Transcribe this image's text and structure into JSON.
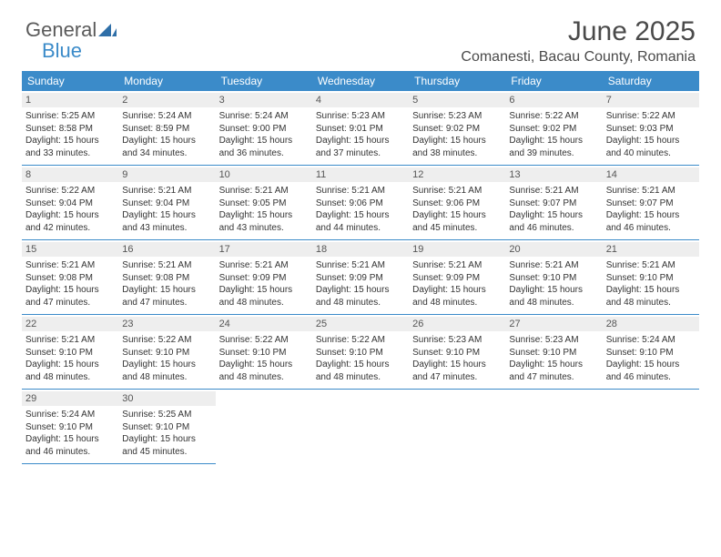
{
  "logo": {
    "word1": "General",
    "word2": "Blue"
  },
  "title": "June 2025",
  "location": "Comanesti, Bacau County, Romania",
  "colors": {
    "header_bg": "#3b8bc9",
    "daynum_bg": "#eeeeee",
    "border": "#3b8bc9"
  },
  "dayNames": [
    "Sunday",
    "Monday",
    "Tuesday",
    "Wednesday",
    "Thursday",
    "Friday",
    "Saturday"
  ],
  "weeks": [
    [
      {
        "num": "1",
        "sunrise": "Sunrise: 5:25 AM",
        "sunset": "Sunset: 8:58 PM",
        "daylight": "Daylight: 15 hours and 33 minutes."
      },
      {
        "num": "2",
        "sunrise": "Sunrise: 5:24 AM",
        "sunset": "Sunset: 8:59 PM",
        "daylight": "Daylight: 15 hours and 34 minutes."
      },
      {
        "num": "3",
        "sunrise": "Sunrise: 5:24 AM",
        "sunset": "Sunset: 9:00 PM",
        "daylight": "Daylight: 15 hours and 36 minutes."
      },
      {
        "num": "4",
        "sunrise": "Sunrise: 5:23 AM",
        "sunset": "Sunset: 9:01 PM",
        "daylight": "Daylight: 15 hours and 37 minutes."
      },
      {
        "num": "5",
        "sunrise": "Sunrise: 5:23 AM",
        "sunset": "Sunset: 9:02 PM",
        "daylight": "Daylight: 15 hours and 38 minutes."
      },
      {
        "num": "6",
        "sunrise": "Sunrise: 5:22 AM",
        "sunset": "Sunset: 9:02 PM",
        "daylight": "Daylight: 15 hours and 39 minutes."
      },
      {
        "num": "7",
        "sunrise": "Sunrise: 5:22 AM",
        "sunset": "Sunset: 9:03 PM",
        "daylight": "Daylight: 15 hours and 40 minutes."
      }
    ],
    [
      {
        "num": "8",
        "sunrise": "Sunrise: 5:22 AM",
        "sunset": "Sunset: 9:04 PM",
        "daylight": "Daylight: 15 hours and 42 minutes."
      },
      {
        "num": "9",
        "sunrise": "Sunrise: 5:21 AM",
        "sunset": "Sunset: 9:04 PM",
        "daylight": "Daylight: 15 hours and 43 minutes."
      },
      {
        "num": "10",
        "sunrise": "Sunrise: 5:21 AM",
        "sunset": "Sunset: 9:05 PM",
        "daylight": "Daylight: 15 hours and 43 minutes."
      },
      {
        "num": "11",
        "sunrise": "Sunrise: 5:21 AM",
        "sunset": "Sunset: 9:06 PM",
        "daylight": "Daylight: 15 hours and 44 minutes."
      },
      {
        "num": "12",
        "sunrise": "Sunrise: 5:21 AM",
        "sunset": "Sunset: 9:06 PM",
        "daylight": "Daylight: 15 hours and 45 minutes."
      },
      {
        "num": "13",
        "sunrise": "Sunrise: 5:21 AM",
        "sunset": "Sunset: 9:07 PM",
        "daylight": "Daylight: 15 hours and 46 minutes."
      },
      {
        "num": "14",
        "sunrise": "Sunrise: 5:21 AM",
        "sunset": "Sunset: 9:07 PM",
        "daylight": "Daylight: 15 hours and 46 minutes."
      }
    ],
    [
      {
        "num": "15",
        "sunrise": "Sunrise: 5:21 AM",
        "sunset": "Sunset: 9:08 PM",
        "daylight": "Daylight: 15 hours and 47 minutes."
      },
      {
        "num": "16",
        "sunrise": "Sunrise: 5:21 AM",
        "sunset": "Sunset: 9:08 PM",
        "daylight": "Daylight: 15 hours and 47 minutes."
      },
      {
        "num": "17",
        "sunrise": "Sunrise: 5:21 AM",
        "sunset": "Sunset: 9:09 PM",
        "daylight": "Daylight: 15 hours and 48 minutes."
      },
      {
        "num": "18",
        "sunrise": "Sunrise: 5:21 AM",
        "sunset": "Sunset: 9:09 PM",
        "daylight": "Daylight: 15 hours and 48 minutes."
      },
      {
        "num": "19",
        "sunrise": "Sunrise: 5:21 AM",
        "sunset": "Sunset: 9:09 PM",
        "daylight": "Daylight: 15 hours and 48 minutes."
      },
      {
        "num": "20",
        "sunrise": "Sunrise: 5:21 AM",
        "sunset": "Sunset: 9:10 PM",
        "daylight": "Daylight: 15 hours and 48 minutes."
      },
      {
        "num": "21",
        "sunrise": "Sunrise: 5:21 AM",
        "sunset": "Sunset: 9:10 PM",
        "daylight": "Daylight: 15 hours and 48 minutes."
      }
    ],
    [
      {
        "num": "22",
        "sunrise": "Sunrise: 5:21 AM",
        "sunset": "Sunset: 9:10 PM",
        "daylight": "Daylight: 15 hours and 48 minutes."
      },
      {
        "num": "23",
        "sunrise": "Sunrise: 5:22 AM",
        "sunset": "Sunset: 9:10 PM",
        "daylight": "Daylight: 15 hours and 48 minutes."
      },
      {
        "num": "24",
        "sunrise": "Sunrise: 5:22 AM",
        "sunset": "Sunset: 9:10 PM",
        "daylight": "Daylight: 15 hours and 48 minutes."
      },
      {
        "num": "25",
        "sunrise": "Sunrise: 5:22 AM",
        "sunset": "Sunset: 9:10 PM",
        "daylight": "Daylight: 15 hours and 48 minutes."
      },
      {
        "num": "26",
        "sunrise": "Sunrise: 5:23 AM",
        "sunset": "Sunset: 9:10 PM",
        "daylight": "Daylight: 15 hours and 47 minutes."
      },
      {
        "num": "27",
        "sunrise": "Sunrise: 5:23 AM",
        "sunset": "Sunset: 9:10 PM",
        "daylight": "Daylight: 15 hours and 47 minutes."
      },
      {
        "num": "28",
        "sunrise": "Sunrise: 5:24 AM",
        "sunset": "Sunset: 9:10 PM",
        "daylight": "Daylight: 15 hours and 46 minutes."
      }
    ],
    [
      {
        "num": "29",
        "sunrise": "Sunrise: 5:24 AM",
        "sunset": "Sunset: 9:10 PM",
        "daylight": "Daylight: 15 hours and 46 minutes."
      },
      {
        "num": "30",
        "sunrise": "Sunrise: 5:25 AM",
        "sunset": "Sunset: 9:10 PM",
        "daylight": "Daylight: 15 hours and 45 minutes."
      },
      null,
      null,
      null,
      null,
      null
    ]
  ]
}
